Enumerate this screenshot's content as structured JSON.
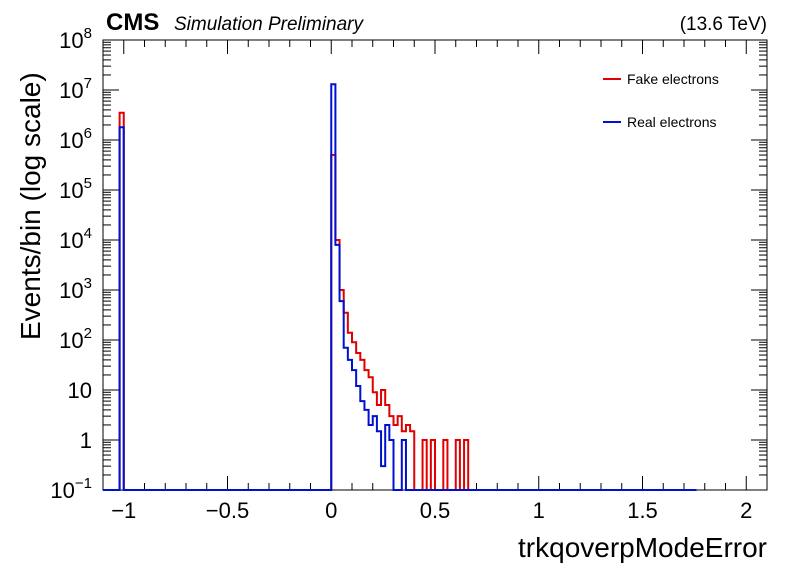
{
  "header": {
    "experiment": "CMS",
    "status": "Simulation Preliminary",
    "energy": "(13.6 TeV)"
  },
  "chart_data": {
    "type": "histogram",
    "xlabel": "trkqoverpModeError",
    "ylabel": "Events/bin (log scale)",
    "xlim": [
      -1.1,
      2.1
    ],
    "ylim": [
      0.1,
      100000000
    ],
    "yscale": "log",
    "x_ticks": [
      {
        "value": -1,
        "label": "−1"
      },
      {
        "value": -0.5,
        "label": "−0.5"
      },
      {
        "value": 0,
        "label": "0"
      },
      {
        "value": 0.5,
        "label": "0.5"
      },
      {
        "value": 1,
        "label": "1"
      },
      {
        "value": 1.5,
        "label": "1.5"
      },
      {
        "value": 2,
        "label": "2"
      }
    ],
    "y_ticks": [
      {
        "value": 0.1,
        "base": "10",
        "exp": "−1"
      },
      {
        "value": 1,
        "base": "1",
        "exp": ""
      },
      {
        "value": 10,
        "base": "10",
        "exp": ""
      },
      {
        "value": 100,
        "base": "10",
        "exp": "2"
      },
      {
        "value": 1000,
        "base": "10",
        "exp": "3"
      },
      {
        "value": 10000,
        "base": "10",
        "exp": "4"
      },
      {
        "value": 100000,
        "base": "10",
        "exp": "5"
      },
      {
        "value": 1000000,
        "base": "10",
        "exp": "6"
      },
      {
        "value": 10000000,
        "base": "10",
        "exp": "7"
      },
      {
        "value": 100000000,
        "base": "10",
        "exp": "8"
      }
    ],
    "bin_width": 0.02,
    "hist_range": [
      -1.1,
      1.76
    ],
    "legend_position": "top-right",
    "series": [
      {
        "name": "Fake electrons",
        "color": "#e00000",
        "bins": [
          {
            "x": -1.02,
            "y": 3500000
          },
          {
            "x": -0.02,
            "y": 0.1
          },
          {
            "x": 0.0,
            "y": 500000
          },
          {
            "x": 0.02,
            "y": 10000
          },
          {
            "x": 0.04,
            "y": 1000
          },
          {
            "x": 0.06,
            "y": 350
          },
          {
            "x": 0.08,
            "y": 140
          },
          {
            "x": 0.1,
            "y": 90
          },
          {
            "x": 0.12,
            "y": 55
          },
          {
            "x": 0.14,
            "y": 40
          },
          {
            "x": 0.16,
            "y": 25
          },
          {
            "x": 0.18,
            "y": 18
          },
          {
            "x": 0.2,
            "y": 9
          },
          {
            "x": 0.22,
            "y": 5
          },
          {
            "x": 0.24,
            "y": 10
          },
          {
            "x": 0.26,
            "y": 5
          },
          {
            "x": 0.28,
            "y": 3
          },
          {
            "x": 0.3,
            "y": 2
          },
          {
            "x": 0.32,
            "y": 3
          },
          {
            "x": 0.34,
            "y": 1.5
          },
          {
            "x": 0.36,
            "y": 2
          },
          {
            "x": 0.38,
            "y": 1.5
          },
          {
            "x": 0.4,
            "y": 0.1
          },
          {
            "x": 0.42,
            "y": 0.1
          },
          {
            "x": 0.44,
            "y": 1
          },
          {
            "x": 0.46,
            "y": 0.1
          },
          {
            "x": 0.48,
            "y": 1
          },
          {
            "x": 0.5,
            "y": 0.1
          },
          {
            "x": 0.54,
            "y": 1
          },
          {
            "x": 0.56,
            "y": 0.1
          },
          {
            "x": 0.6,
            "y": 1
          },
          {
            "x": 0.62,
            "y": 0.1
          },
          {
            "x": 0.64,
            "y": 1
          },
          {
            "x": 0.66,
            "y": 0.1
          }
        ]
      },
      {
        "name": "Real electrons",
        "color": "#0010d0",
        "bins": [
          {
            "x": -1.02,
            "y": 1800000
          },
          {
            "x": -0.02,
            "y": 0.1
          },
          {
            "x": 0.0,
            "y": 13000000
          },
          {
            "x": 0.02,
            "y": 8000
          },
          {
            "x": 0.04,
            "y": 600
          },
          {
            "x": 0.06,
            "y": 70
          },
          {
            "x": 0.08,
            "y": 40
          },
          {
            "x": 0.1,
            "y": 25
          },
          {
            "x": 0.12,
            "y": 12
          },
          {
            "x": 0.14,
            "y": 6
          },
          {
            "x": 0.16,
            "y": 4
          },
          {
            "x": 0.18,
            "y": 2
          },
          {
            "x": 0.2,
            "y": 3
          },
          {
            "x": 0.22,
            "y": 1.5
          },
          {
            "x": 0.24,
            "y": 0.3
          },
          {
            "x": 0.26,
            "y": 2
          },
          {
            "x": 0.28,
            "y": 1
          },
          {
            "x": 0.3,
            "y": 0.1
          },
          {
            "x": 0.32,
            "y": 0.1
          },
          {
            "x": 0.34,
            "y": 1
          },
          {
            "x": 0.36,
            "y": 0.1
          }
        ]
      }
    ]
  }
}
